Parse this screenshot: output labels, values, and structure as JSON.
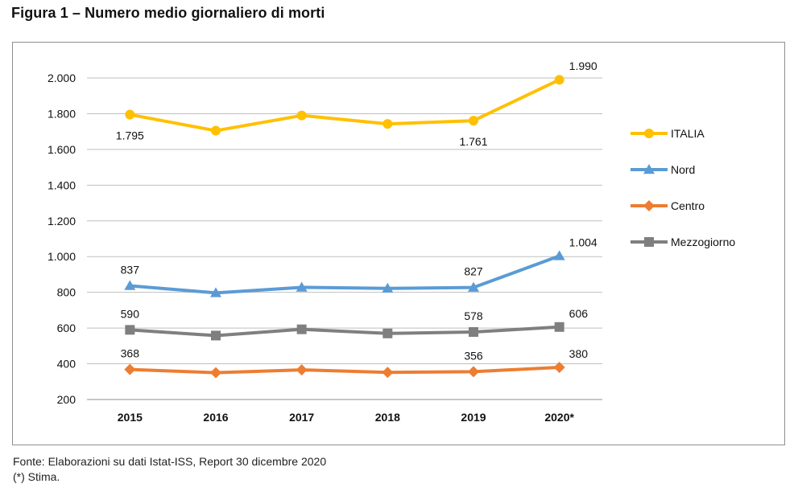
{
  "figure": {
    "title": "Figura 1 – Numero medio giornaliero di morti"
  },
  "footnotes": {
    "source": "Fonte: Elaborazioni su dati Istat-ISS, Report 30 dicembre 2020",
    "estimate": "(*) Stima."
  },
  "chart_data": {
    "type": "line",
    "title": "",
    "xlabel": "",
    "ylabel": "",
    "categories": [
      "2015",
      "2016",
      "2017",
      "2018",
      "2019",
      "2020*"
    ],
    "ylim": [
      200,
      2000
    ],
    "yticks": [
      200,
      400,
      600,
      800,
      1000,
      1200,
      1400,
      1600,
      1800,
      2000
    ],
    "ytick_labels": [
      "200",
      "400",
      "600",
      "800",
      "1.000",
      "1.200",
      "1.400",
      "1.600",
      "1.800",
      "2.000"
    ],
    "grid": "horizontal",
    "legend_position": "right",
    "series": [
      {
        "name": "ITALIA",
        "color": "#FFC000",
        "marker": "circle",
        "values": [
          1795,
          1705,
          1790,
          1743,
          1761,
          1990
        ],
        "labels": [
          "1.795",
          "",
          "",
          "",
          "1.761",
          "1.990"
        ],
        "label_pos": [
          "below",
          "",
          "",
          "",
          "below",
          "above-right"
        ]
      },
      {
        "name": "Nord",
        "color": "#5B9BD5",
        "marker": "triangle",
        "values": [
          837,
          797,
          828,
          822,
          827,
          1004
        ],
        "labels": [
          "837",
          "",
          "",
          "",
          "827",
          "1.004"
        ],
        "label_pos": [
          "above",
          "",
          "",
          "",
          "above",
          "above-right"
        ]
      },
      {
        "name": "Centro",
        "color": "#ED7D31",
        "marker": "diamond",
        "values": [
          368,
          350,
          366,
          352,
          356,
          380
        ],
        "labels": [
          "368",
          "",
          "",
          "",
          "356",
          "380"
        ],
        "label_pos": [
          "above",
          "",
          "",
          "",
          "above",
          "above-right"
        ]
      },
      {
        "name": "Mezzogiorno",
        "color": "#7F7F7F",
        "marker": "square",
        "values": [
          590,
          558,
          593,
          570,
          578,
          606
        ],
        "labels": [
          "590",
          "",
          "",
          "",
          "578",
          "606"
        ],
        "label_pos": [
          "above",
          "",
          "",
          "",
          "above",
          "above-right"
        ]
      }
    ]
  }
}
